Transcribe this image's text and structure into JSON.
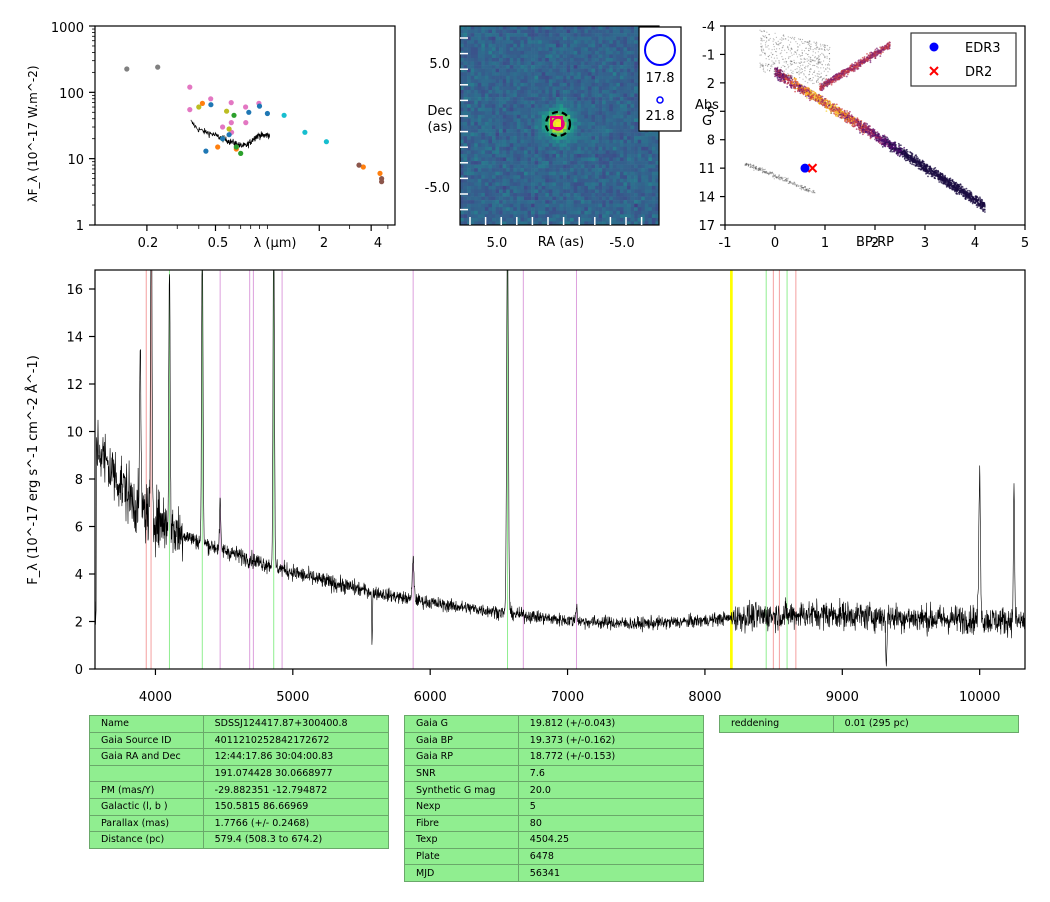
{
  "colors": {
    "table_bg": "#90ee90",
    "spectrum": "#000000",
    "line_red": "#f4a0a0",
    "line_green": "#90ee90",
    "line_purple": "#dda0dd",
    "line_yellow": "#ffff00",
    "edr3": "#0000ff",
    "dr2": "#ff0000"
  },
  "chart_data": [
    {
      "type": "scatter",
      "panel": "sed",
      "ylabel": "λF_λ (10^-17 W.m^-2)",
      "xlabel": "λ (μm)",
      "xscale": "log",
      "yscale": "log",
      "xlim": [
        0.1,
        5.5
      ],
      "ylim": [
        1,
        1000
      ],
      "xticklabels": [
        "0.2",
        "0.5",
        "2",
        "4"
      ],
      "yticklabels": [
        "1",
        "10",
        "100",
        "1000"
      ],
      "series": [
        {
          "color": "#808080",
          "points": [
            [
              0.153,
              225
            ],
            [
              0.231,
              240
            ]
          ]
        },
        {
          "color": "#e377c2",
          "points": [
            [
              0.355,
              120
            ],
            [
              0.355,
              55
            ],
            [
              0.469,
              80
            ],
            [
              0.617,
              70
            ],
            [
              0.748,
              60
            ],
            [
              0.893,
              68
            ],
            [
              0.618,
              35
            ],
            [
              0.75,
              35
            ],
            [
              0.55,
              30
            ],
            [
              0.62,
              25
            ]
          ]
        },
        {
          "color": "#bcbd22",
          "points": [
            [
              0.4,
              60
            ],
            [
              0.58,
              52
            ],
            [
              0.6,
              28
            ]
          ]
        },
        {
          "color": "#ff7f0e",
          "points": [
            [
              0.42,
              68
            ],
            [
              0.515,
              15
            ],
            [
              0.66,
              14
            ],
            [
              3.6,
              7.5
            ],
            [
              4.5,
              6
            ]
          ]
        },
        {
          "color": "#2ca02c",
          "points": [
            [
              0.55,
              20
            ],
            [
              0.64,
              45
            ],
            [
              0.66,
              15
            ],
            [
              0.7,
              12
            ]
          ]
        },
        {
          "color": "#1f77b4",
          "points": [
            [
              0.44,
              13
            ],
            [
              0.47,
              65
            ],
            [
              0.55,
              20
            ],
            [
              0.6,
              23
            ],
            [
              0.78,
              50
            ],
            [
              0.9,
              62
            ],
            [
              1.0,
              48
            ]
          ]
        },
        {
          "color": "#17becf",
          "points": [
            [
              1.25,
              45
            ],
            [
              1.65,
              25
            ],
            [
              2.2,
              18
            ]
          ]
        },
        {
          "color": "#8c564b",
          "points": [
            [
              3.4,
              8
            ],
            [
              4.6,
              5
            ],
            [
              4.6,
              4.5
            ]
          ]
        }
      ]
    },
    {
      "type": "image",
      "panel": "cutout",
      "xlabel": "RA (as)",
      "ylabel": "Dec\n(as)",
      "xticklabels": [
        "5.0",
        "-5.0"
      ],
      "yticklabels": [
        "5.0",
        "-5.0"
      ],
      "legend_labels": [
        "17.8",
        "21.8"
      ]
    },
    {
      "type": "scatter",
      "panel": "hrd",
      "xlabel": "BP-RP",
      "ylabel": "Abs\nG",
      "xlim": [
        -1,
        5
      ],
      "ylim": [
        17,
        -4
      ],
      "xticklabels": [
        "-1",
        "0",
        "1",
        "2",
        "3",
        "4",
        "5"
      ],
      "yticklabels": [
        "-4",
        "-1",
        "2",
        "5",
        "8",
        "11",
        "14",
        "17"
      ],
      "series": [
        {
          "name": "EDR3",
          "color": "#0000ff",
          "marker": "circle",
          "points": [
            [
              0.6,
              11
            ]
          ]
        },
        {
          "name": "DR2",
          "color": "#ff0000",
          "marker": "x",
          "points": [
            [
              0.75,
              11
            ]
          ]
        }
      ],
      "legend_placement": "top-right"
    },
    {
      "type": "line",
      "panel": "spectrum",
      "ylabel": "F_λ (10^-17 erg s^-1 cm^-2 Å^-1)",
      "xlim": [
        3560,
        10330
      ],
      "ylim": [
        0,
        16.8
      ],
      "xticklabels": [
        "4000",
        "5000",
        "6000",
        "7000",
        "8000",
        "9000",
        "10000"
      ],
      "yticklabels": [
        "0",
        "2",
        "4",
        "6",
        "8",
        "10",
        "12",
        "14",
        "16"
      ],
      "continuum": [
        [
          3570,
          9.5
        ],
        [
          3650,
          8.6
        ],
        [
          3750,
          7.8
        ],
        [
          3850,
          7.0
        ],
        [
          3950,
          6.5
        ],
        [
          4050,
          6.2
        ],
        [
          4150,
          5.8
        ],
        [
          4300,
          5.4
        ],
        [
          4500,
          5.0
        ],
        [
          4700,
          4.6
        ],
        [
          4900,
          4.25
        ],
        [
          5100,
          3.9
        ],
        [
          5300,
          3.6
        ],
        [
          5500,
          3.35
        ],
        [
          5700,
          3.1
        ],
        [
          5900,
          2.9
        ],
        [
          6100,
          2.7
        ],
        [
          6300,
          2.55
        ],
        [
          6500,
          2.4
        ],
        [
          6700,
          2.25
        ],
        [
          6900,
          2.1
        ],
        [
          7100,
          2.0
        ],
        [
          7300,
          1.95
        ],
        [
          7500,
          1.9
        ],
        [
          7700,
          1.95
        ],
        [
          7900,
          2.0
        ],
        [
          8100,
          2.1
        ],
        [
          8300,
          2.2
        ],
        [
          8500,
          2.25
        ],
        [
          8700,
          2.3
        ],
        [
          8900,
          2.3
        ],
        [
          9100,
          2.25
        ],
        [
          9300,
          2.2
        ],
        [
          9500,
          2.15
        ],
        [
          9700,
          2.1
        ],
        [
          9900,
          2.1
        ],
        [
          10100,
          2.05
        ],
        [
          10330,
          2.0
        ]
      ],
      "emission_lines": [
        [
          3890,
          7.5,
          4
        ],
        [
          3970,
          14.5,
          5
        ],
        [
          4102,
          10.5,
          5
        ],
        [
          4341,
          13.2,
          5
        ],
        [
          4471,
          2.0,
          4
        ],
        [
          4861,
          14.5,
          5
        ],
        [
          5876,
          1.8,
          6
        ],
        [
          6563,
          16.8,
          6
        ],
        [
          7065,
          0.6,
          6
        ],
        [
          10000,
          6.0,
          6
        ],
        [
          10250,
          8.0,
          4
        ]
      ],
      "absorption_lines": [
        [
          5577,
          2.2,
          3
        ],
        [
          9320,
          2.0,
          4
        ],
        [
          10250,
          2.0,
          4
        ]
      ],
      "vlines": {
        "red": [
          3933,
          3968,
          8498,
          8542,
          8662
        ],
        "green": [
          4102,
          4341,
          4861,
          6563,
          8446,
          8598
        ],
        "purple": [
          4471,
          4686,
          4713,
          4922,
          5876,
          6678,
          7065
        ],
        "yellow": [
          8190,
          8195
        ]
      }
    }
  ],
  "tables": {
    "table1": [
      [
        "Name",
        "SDSSJ124417.87+300400.8"
      ],
      [
        "Gaia Source ID",
        "4011210252842172672"
      ],
      [
        "Gaia RA and Dec",
        "12:44:17.86    30:04:00.83"
      ],
      [
        "",
        "191.074428    30.0668977"
      ],
      [
        "PM (mas/Y)",
        "-29.882351    -12.794872"
      ],
      [
        "Galactic (l, b )",
        "150.5815    86.66969"
      ],
      [
        "Parallax (mas)",
        "1.7766 (+/- 0.2468)"
      ],
      [
        "Distance (pc)",
        "579.4 (508.3 to 674.2)"
      ]
    ],
    "table2": [
      [
        "Gaia G",
        "19.812 (+/-0.043)"
      ],
      [
        "Gaia BP",
        "19.373 (+/-0.162)"
      ],
      [
        "Gaia RP",
        "18.772 (+/-0.153)"
      ],
      [
        "SNR",
        "7.6"
      ],
      [
        "Synthetic G mag",
        "20.0"
      ],
      [
        "Nexp",
        "5"
      ],
      [
        "Fibre",
        "80"
      ],
      [
        "Texp",
        "4504.25"
      ],
      [
        "Plate",
        "6478"
      ],
      [
        "MJD",
        "56341"
      ]
    ],
    "table3": [
      [
        "reddening",
        "0.01 (295 pc)"
      ]
    ]
  }
}
